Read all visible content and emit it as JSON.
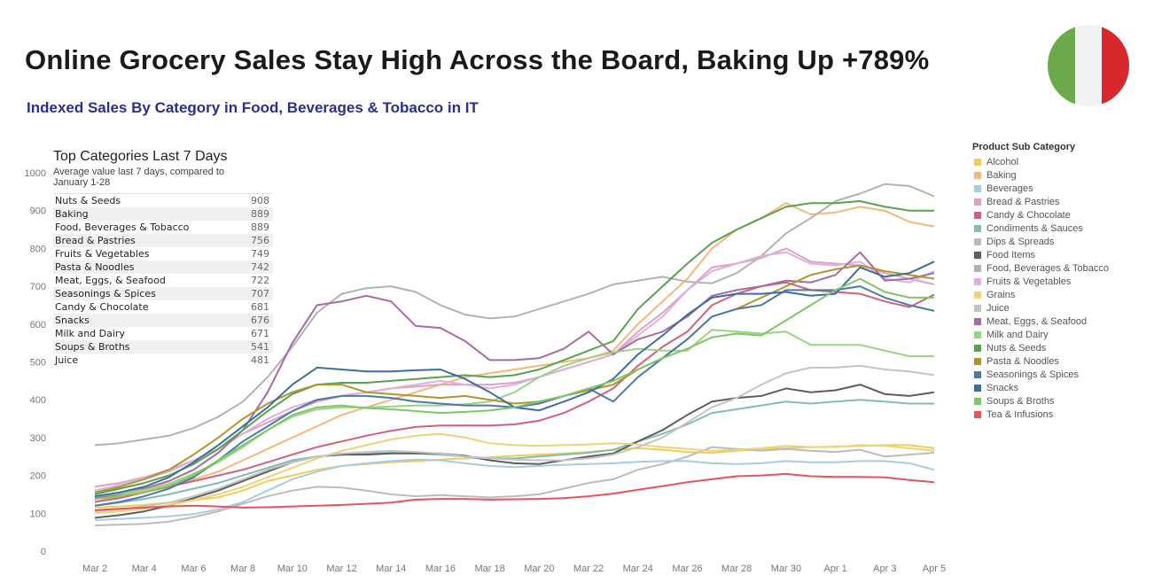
{
  "header": {
    "title": "Online Grocery Sales Stay High Across the Board, Baking Up +789%",
    "subtitle": "Indexed Sales By Category in Food, Beverages & Tobacco in IT"
  },
  "flag": {
    "colors": [
      "#6ea84c",
      "#f2f2f2",
      "#d9272e"
    ]
  },
  "top_table": {
    "heading": "Top Categories Last 7 Days",
    "description": "Average value last 7 days, compared to January 1-28",
    "rows": [
      {
        "name": "Nuts & Seeds",
        "value": "908"
      },
      {
        "name": "Baking",
        "value": "889"
      },
      {
        "name": "Food, Beverages & Tobacco",
        "value": "889"
      },
      {
        "name": "Bread & Pastries",
        "value": "756"
      },
      {
        "name": "Fruits & Vegetables",
        "value": "749"
      },
      {
        "name": "Pasta & Noodles",
        "value": "742"
      },
      {
        "name": "Meat, Eggs, & Seafood",
        "value": "722"
      },
      {
        "name": "Seasonings & Spices",
        "value": "707"
      },
      {
        "name": "Candy & Chocolate",
        "value": "681"
      },
      {
        "name": "Snacks",
        "value": "676"
      },
      {
        "name": "Milk and Dairy",
        "value": "671"
      },
      {
        "name": "Soups & Broths",
        "value": "541"
      },
      {
        "name": "Juice",
        "value": "481"
      }
    ]
  },
  "chart_data": {
    "type": "line",
    "ylim": [
      0,
      1000
    ],
    "yticks": [
      0,
      100,
      200,
      300,
      400,
      500,
      600,
      700,
      800,
      900,
      1000
    ],
    "x": [
      "Mar 2",
      "Mar 3",
      "Mar 4",
      "Mar 5",
      "Mar 6",
      "Mar 7",
      "Mar 8",
      "Mar 9",
      "Mar 10",
      "Mar 11",
      "Mar 12",
      "Mar 13",
      "Mar 14",
      "Mar 15",
      "Mar 16",
      "Mar 17",
      "Mar 18",
      "Mar 19",
      "Mar 20",
      "Mar 21",
      "Mar 22",
      "Mar 23",
      "Mar 24",
      "Mar 25",
      "Mar 26",
      "Mar 27",
      "Mar 28",
      "Mar 29",
      "Mar 30",
      "Mar 31",
      "Apr 1",
      "Apr 2",
      "Apr 3",
      "Apr 4",
      "Apr 5"
    ],
    "xtick_labels": [
      "Mar 2",
      "Mar 4",
      "Mar 6",
      "Mar 8",
      "Mar 10",
      "Mar 12",
      "Mar 14",
      "Mar 16",
      "Mar 18",
      "Mar 20",
      "Mar 22",
      "Mar 24",
      "Mar 26",
      "Mar 28",
      "Mar 30",
      "Apr 1",
      "Apr 3",
      "Apr 5"
    ],
    "legend_title": "Product Sub Category",
    "legend_position": "right",
    "series": [
      {
        "name": "Alcohol",
        "color": "#f0cc58",
        "values": [
          115,
          118,
          122,
          128,
          135,
          142,
          160,
          185,
          200,
          215,
          225,
          230,
          235,
          238,
          242,
          245,
          248,
          252,
          255,
          258,
          262,
          268,
          272,
          268,
          262,
          260,
          265,
          270,
          272,
          275,
          276,
          278,
          280,
          280,
          272
        ]
      },
      {
        "name": "Baking",
        "color": "#f5b77a",
        "values": [
          130,
          145,
          160,
          175,
          190,
          210,
          240,
          270,
          300,
          330,
          360,
          380,
          400,
          420,
          440,
          460,
          470,
          480,
          490,
          500,
          510,
          530,
          600,
          660,
          720,
          800,
          850,
          880,
          920,
          890,
          895,
          910,
          900,
          870,
          858
        ]
      },
      {
        "name": "Beverages",
        "color": "#a7cbe3",
        "values": [
          82,
          85,
          88,
          92,
          98,
          110,
          130,
          160,
          190,
          210,
          225,
          232,
          238,
          242,
          240,
          232,
          225,
          222,
          225,
          228,
          230,
          232,
          236,
          238,
          238,
          232,
          230,
          232,
          238,
          235,
          235,
          238,
          238,
          232,
          215
        ]
      },
      {
        "name": "Bread & Pastries",
        "color": "#d6a4c7",
        "values": [
          170,
          180,
          195,
          215,
          240,
          270,
          310,
          340,
          370,
          395,
          410,
          420,
          430,
          435,
          440,
          440,
          440,
          445,
          460,
          480,
          500,
          520,
          580,
          630,
          690,
          750,
          760,
          775,
          800,
          765,
          760,
          755,
          735,
          720,
          705
        ]
      },
      {
        "name": "Candy & Chocolate",
        "color": "#d2607a",
        "values": [
          130,
          140,
          155,
          170,
          185,
          200,
          215,
          235,
          255,
          275,
          290,
          305,
          318,
          328,
          332,
          332,
          332,
          335,
          345,
          365,
          395,
          430,
          490,
          540,
          580,
          650,
          680,
          700,
          710,
          690,
          685,
          680,
          660,
          645,
          678
        ]
      },
      {
        "name": "Condiments & Sauces",
        "color": "#86bab4",
        "values": [
          120,
          128,
          138,
          150,
          165,
          180,
          200,
          220,
          240,
          250,
          255,
          258,
          260,
          258,
          255,
          250,
          245,
          245,
          250,
          255,
          260,
          268,
          290,
          310,
          335,
          365,
          375,
          385,
          395,
          390,
          395,
          400,
          395,
          390,
          390
        ]
      },
      {
        "name": "Dips & Spreads",
        "color": "#bcbcbc",
        "values": [
          68,
          70,
          72,
          78,
          90,
          105,
          125,
          145,
          160,
          170,
          168,
          160,
          150,
          145,
          148,
          145,
          142,
          145,
          150,
          165,
          180,
          190,
          215,
          230,
          250,
          275,
          270,
          265,
          270,
          265,
          262,
          268,
          250,
          255,
          260
        ]
      },
      {
        "name": "Food Items",
        "color": "#5e5e5e",
        "values": [
          88,
          95,
          105,
          120,
          140,
          160,
          185,
          210,
          235,
          250,
          255,
          255,
          258,
          258,
          258,
          252,
          240,
          232,
          230,
          240,
          250,
          258,
          290,
          320,
          360,
          395,
          405,
          410,
          430,
          420,
          425,
          440,
          415,
          410,
          420
        ]
      },
      {
        "name": "Food, Beverages & Tobacco",
        "color": "#b2b2b2",
        "values": [
          280,
          285,
          295,
          305,
          325,
          355,
          395,
          460,
          540,
          630,
          680,
          695,
          700,
          685,
          650,
          625,
          615,
          620,
          640,
          660,
          680,
          705,
          715,
          725,
          712,
          708,
          735,
          780,
          840,
          880,
          925,
          945,
          970,
          965,
          938
        ]
      },
      {
        "name": "Fruits & Vegetables",
        "color": "#e0b0da",
        "values": [
          160,
          175,
          190,
          210,
          240,
          270,
          310,
          350,
          380,
          400,
          410,
          420,
          430,
          440,
          450,
          440,
          430,
          440,
          460,
          480,
          500,
          520,
          570,
          620,
          690,
          740,
          760,
          780,
          790,
          760,
          755,
          765,
          720,
          710,
          740
        ]
      },
      {
        "name": "Grains",
        "color": "#ecd37a",
        "values": [
          100,
          105,
          112,
          122,
          135,
          150,
          170,
          195,
          220,
          245,
          265,
          280,
          295,
          305,
          310,
          300,
          285,
          280,
          278,
          280,
          282,
          285,
          282,
          275,
          270,
          265,
          268,
          272,
          278,
          275,
          275,
          280,
          278,
          272,
          265
        ]
      },
      {
        "name": "Juice",
        "color": "#c4c4c4",
        "values": [
          105,
          110,
          118,
          128,
          145,
          165,
          190,
          215,
          235,
          250,
          258,
          262,
          265,
          262,
          258,
          250,
          245,
          242,
          240,
          240,
          245,
          255,
          275,
          300,
          340,
          380,
          405,
          440,
          470,
          485,
          485,
          490,
          480,
          475,
          465
        ]
      },
      {
        "name": "Meat, Eggs, & Seafood",
        "color": "#a36ca3",
        "values": [
          140,
          150,
          165,
          185,
          215,
          260,
          320,
          420,
          550,
          650,
          660,
          675,
          660,
          595,
          590,
          555,
          505,
          505,
          510,
          535,
          580,
          520,
          560,
          580,
          620,
          675,
          690,
          700,
          715,
          710,
          730,
          790,
          715,
          720,
          735
        ]
      },
      {
        "name": "Milk and Dairy",
        "color": "#9bd384",
        "values": [
          145,
          152,
          162,
          178,
          205,
          235,
          275,
          320,
          355,
          375,
          380,
          380,
          382,
          385,
          385,
          388,
          395,
          420,
          460,
          490,
          510,
          525,
          535,
          530,
          530,
          585,
          580,
          575,
          580,
          545,
          545,
          545,
          530,
          515,
          515
        ]
      },
      {
        "name": "Nuts & Seeds",
        "color": "#59a14f",
        "values": [
          150,
          165,
          180,
          200,
          230,
          270,
          320,
          370,
          415,
          440,
          445,
          445,
          450,
          455,
          460,
          465,
          460,
          465,
          480,
          505,
          530,
          555,
          640,
          700,
          760,
          815,
          850,
          880,
          910,
          920,
          920,
          925,
          910,
          900,
          900
        ]
      },
      {
        "name": "Pasta & Noodles",
        "color": "#b09532",
        "values": [
          155,
          170,
          190,
          215,
          255,
          300,
          350,
          390,
          420,
          440,
          440,
          420,
          415,
          410,
          405,
          410,
          400,
          390,
          395,
          410,
          425,
          440,
          480,
          510,
          560,
          620,
          640,
          670,
          700,
          730,
          745,
          755,
          740,
          730,
          720
        ]
      },
      {
        "name": "Seasonings & Spices",
        "color": "#4e79a7",
        "values": [
          120,
          130,
          145,
          165,
          195,
          240,
          290,
          330,
          370,
          400,
          410,
          410,
          405,
          395,
          390,
          385,
          385,
          380,
          390,
          410,
          430,
          395,
          460,
          510,
          560,
          620,
          640,
          650,
          690,
          690,
          690,
          700,
          670,
          650,
          635
        ]
      },
      {
        "name": "Snacks",
        "color": "#3f6d9e",
        "values": [
          145,
          155,
          170,
          195,
          235,
          280,
          330,
          380,
          440,
          485,
          480,
          475,
          475,
          478,
          480,
          455,
          420,
          380,
          372,
          395,
          420,
          455,
          520,
          570,
          625,
          670,
          680,
          680,
          685,
          675,
          680,
          750,
          725,
          735,
          765
        ]
      },
      {
        "name": "Soups & Broths",
        "color": "#7dc765",
        "values": [
          138,
          145,
          155,
          172,
          200,
          240,
          280,
          320,
          360,
          380,
          385,
          378,
          375,
          370,
          365,
          368,
          372,
          380,
          395,
          410,
          430,
          450,
          480,
          510,
          535,
          565,
          575,
          570,
          610,
          650,
          690,
          720,
          685,
          670,
          670
        ]
      },
      {
        "name": "Tea & Infusions",
        "color": "#e15759",
        "values": [
          108,
          112,
          115,
          118,
          120,
          118,
          115,
          116,
          118,
          120,
          122,
          125,
          128,
          136,
          138,
          138,
          136,
          137,
          138,
          140,
          145,
          152,
          162,
          172,
          182,
          190,
          198,
          200,
          204,
          198,
          196,
          196,
          195,
          188,
          182
        ]
      }
    ]
  }
}
